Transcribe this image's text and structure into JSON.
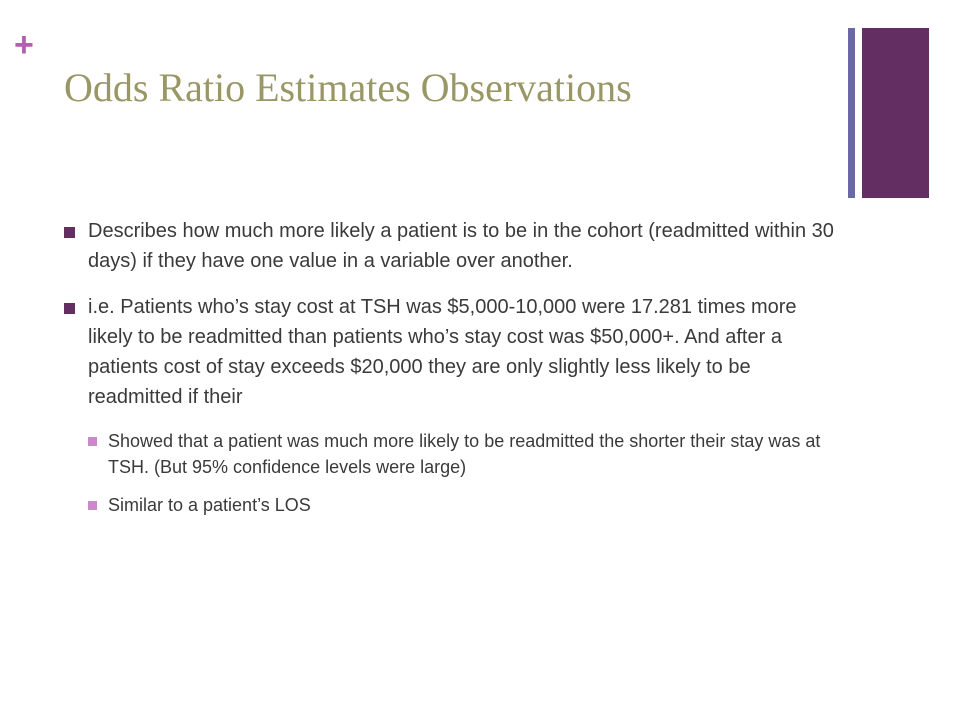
{
  "slide": {
    "plus_symbol": "+",
    "title": "Odds Ratio Estimates Observations",
    "bullets": [
      "Describes how much more likely a patient is to be in the cohort (readmitted within 30 days) if they have one value in a variable over another.",
      "i.e.  Patients who’s stay cost at TSH was $5,000-10,000 were 17.281 times more likely to be readmitted than patients who’s stay cost was $50,000+.  And after a patients cost of stay exceeds $20,000 they are only slightly less likely to be readmitted if their"
    ],
    "sub_bullets": [
      "Showed that a patient was much more likely to be readmitted the shorter their stay was at TSH. (But 95% confidence levels were large)",
      "Similar to a patient’s LOS"
    ]
  },
  "colors": {
    "plus": "#b160b0",
    "title": "#9a9767",
    "bar_thin": "#6b68a6",
    "bar_wide": "#632f63",
    "bullet": "#632f63",
    "sub_bullet": "#c98ac9",
    "text": "#3a3a3a"
  }
}
